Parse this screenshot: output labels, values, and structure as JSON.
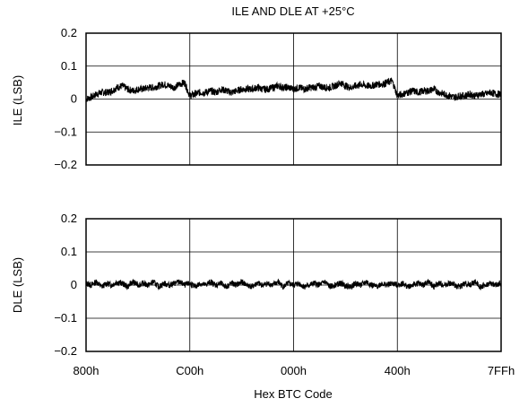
{
  "chart_data": [
    {
      "type": "line",
      "title": "ILE AND DLE AT +25°C",
      "ylabel": "ILE (LSB)",
      "xlabel": "",
      "ylim": [
        -0.2,
        0.2
      ],
      "yticks": [
        "0.2",
        "0.1",
        "0",
        "-0.1",
        "-0.2"
      ],
      "categories": [
        "800h",
        "C00h",
        "000h",
        "400h",
        "7FFh"
      ],
      "grid": true,
      "series": [
        {
          "x": [
            0,
            0.05,
            0.1,
            0.15,
            0.2,
            0.25,
            0.3,
            0.35,
            0.4,
            0.45,
            0.5,
            0.55,
            0.6,
            0.65,
            0.7,
            0.75,
            0.8,
            0.85,
            0.9,
            0.95,
            1.0,
            1.05,
            1.1,
            1.15,
            1.2,
            1.25,
            1.3,
            1.35,
            1.4,
            1.45,
            1.5,
            1.55,
            1.6,
            1.65,
            1.7,
            1.75,
            1.8,
            1.85,
            1.9,
            1.95,
            2.0,
            2.05,
            2.1,
            2.15,
            2.2,
            2.25,
            2.3,
            2.35,
            2.4,
            2.45,
            2.5,
            2.55,
            2.6,
            2.65,
            2.7,
            2.75,
            2.8,
            2.85,
            2.9,
            2.95,
            3.0,
            3.05,
            3.1,
            3.15,
            3.2,
            3.25,
            3.3,
            3.35,
            3.4,
            3.45,
            3.5,
            3.55,
            3.6,
            3.65,
            3.7,
            3.75,
            3.8,
            3.85,
            3.9,
            3.95,
            4.0
          ],
          "values": [
            0.0,
            0.005,
            0.015,
            0.02,
            0.02,
            0.025,
            0.035,
            0.04,
            0.03,
            0.025,
            0.03,
            0.03,
            0.035,
            0.035,
            0.04,
            0.045,
            0.04,
            0.035,
            0.045,
            0.05,
            0.01,
            0.015,
            0.02,
            0.02,
            0.025,
            0.02,
            0.03,
            0.025,
            0.02,
            0.025,
            0.03,
            0.03,
            0.03,
            0.035,
            0.03,
            0.03,
            0.035,
            0.04,
            0.035,
            0.035,
            0.03,
            0.035,
            0.03,
            0.035,
            0.035,
            0.04,
            0.035,
            0.035,
            0.04,
            0.05,
            0.04,
            0.035,
            0.04,
            0.045,
            0.04,
            0.04,
            0.045,
            0.045,
            0.05,
            0.055,
            0.01,
            0.015,
            0.02,
            0.025,
            0.02,
            0.025,
            0.025,
            0.03,
            0.02,
            0.015,
            0.01,
            0.005,
            0.01,
            0.01,
            0.015,
            0.01,
            0.015,
            0.015,
            0.02,
            0.015,
            0.015
          ]
        }
      ]
    },
    {
      "type": "line",
      "ylabel": "DLE (LSB)",
      "xlabel": "Hex BTC Code",
      "ylim": [
        -0.2,
        0.2
      ],
      "yticks": [
        "0.2",
        "0.1",
        "0",
        "-0.1",
        "-0.2"
      ],
      "categories": [
        "800h",
        "C00h",
        "000h",
        "400h",
        "7FFh"
      ],
      "grid": true,
      "series": [
        {
          "x": [
            0,
            0.05,
            0.1,
            0.15,
            0.2,
            0.25,
            0.3,
            0.35,
            0.4,
            0.45,
            0.5,
            0.55,
            0.6,
            0.65,
            0.7,
            0.75,
            0.8,
            0.85,
            0.9,
            0.95,
            1.0,
            1.05,
            1.1,
            1.15,
            1.2,
            1.25,
            1.3,
            1.35,
            1.4,
            1.45,
            1.5,
            1.55,
            1.6,
            1.65,
            1.7,
            1.75,
            1.8,
            1.85,
            1.9,
            1.95,
            2.0,
            2.05,
            2.1,
            2.15,
            2.2,
            2.25,
            2.3,
            2.35,
            2.4,
            2.45,
            2.5,
            2.55,
            2.6,
            2.65,
            2.7,
            2.75,
            2.8,
            2.85,
            2.9,
            2.95,
            3.0,
            3.05,
            3.1,
            3.15,
            3.2,
            3.25,
            3.3,
            3.35,
            3.4,
            3.45,
            3.5,
            3.55,
            3.6,
            3.65,
            3.7,
            3.75,
            3.8,
            3.85,
            3.9,
            3.95,
            4.0
          ],
          "values": [
            0.005,
            0.0,
            0.01,
            -0.005,
            0.005,
            0.0,
            0.01,
            0.005,
            -0.005,
            0.01,
            0.0,
            0.005,
            0.0,
            0.01,
            -0.005,
            0.005,
            0.0,
            0.005,
            0.01,
            0.0,
            0.005,
            -0.005,
            0.005,
            0.0,
            0.01,
            0.0,
            0.005,
            -0.005,
            0.005,
            0.0,
            0.01,
            0.0,
            -0.005,
            0.005,
            0.0,
            0.005,
            0.0,
            0.01,
            -0.005,
            0.005,
            0.0,
            0.005,
            -0.005,
            0.0,
            0.005,
            0.0,
            0.01,
            -0.005,
            0.0,
            0.005,
            0.0,
            -0.005,
            0.005,
            0.0,
            0.01,
            0.0,
            -0.005,
            0.005,
            0.0,
            0.005,
            0.0,
            0.005,
            -0.005,
            0.0,
            0.005,
            0.0,
            0.01,
            -0.005,
            0.005,
            0.0,
            0.005,
            0.0,
            -0.005,
            0.005,
            0.0,
            0.01,
            -0.005,
            0.0,
            0.005,
            0.0,
            0.005
          ]
        }
      ]
    }
  ]
}
